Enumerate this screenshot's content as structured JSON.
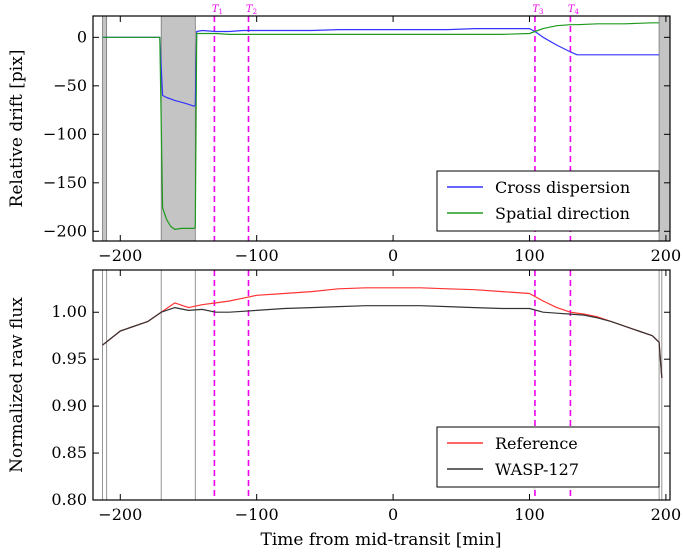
{
  "chart_data": [
    {
      "type": "line",
      "ylabel": "Relative drift [pix]",
      "xlim": [
        -220,
        203
      ],
      "ylim": [
        -210,
        22
      ],
      "xticks": [
        -200,
        -100,
        0,
        100,
        200
      ],
      "xtick_labels": [
        "−200",
        "−100",
        "0",
        "100",
        "200"
      ],
      "yticks": [
        0,
        -50,
        -100,
        -150,
        -200
      ],
      "ytick_labels": [
        "0",
        "−50",
        "−100",
        "−150",
        "−200"
      ],
      "shaded_regions": [
        [
          -213,
          -210
        ],
        [
          -170,
          -145
        ],
        [
          195,
          203
        ]
      ],
      "transit_markers": [
        {
          "label": "T1",
          "x": -131
        },
        {
          "label": "T2",
          "x": -106
        },
        {
          "label": "T3",
          "x": 104
        },
        {
          "label": "T4",
          "x": 130
        }
      ],
      "legend_position": "lower-right",
      "series": [
        {
          "name": "Cross dispersion",
          "color": "#3333ff",
          "x": [
            -213,
            -205,
            -195,
            -185,
            -175,
            -171,
            -169,
            -166,
            -160,
            -155,
            -150,
            -146,
            -145,
            -144,
            -140,
            -130,
            -120,
            -110,
            -100,
            -80,
            -60,
            -40,
            -20,
            0,
            20,
            40,
            60,
            80,
            100,
            104,
            110,
            120,
            130,
            135,
            150,
            170,
            190,
            195
          ],
          "y": [
            0,
            0,
            0,
            0,
            0,
            0,
            -60,
            -62,
            -65,
            -67,
            -69,
            -71,
            -70,
            6,
            7,
            6,
            6,
            7,
            7,
            7,
            7,
            8,
            8,
            8,
            8,
            8,
            9,
            9,
            9,
            6,
            0,
            -8,
            -15,
            -18,
            -18,
            -18,
            -18,
            -18
          ]
        },
        {
          "name": "Spatial direction",
          "color": "#1e9a1e",
          "x": [
            -213,
            -205,
            -195,
            -185,
            -175,
            -171,
            -169,
            -166,
            -163,
            -160,
            -155,
            -150,
            -146,
            -145,
            -144,
            -140,
            -130,
            -120,
            -110,
            -100,
            -80,
            -60,
            -40,
            -20,
            0,
            20,
            40,
            60,
            80,
            100,
            104,
            110,
            120,
            130,
            135,
            150,
            170,
            190,
            195
          ],
          "y": [
            0,
            0,
            0,
            0,
            0,
            0,
            -176,
            -188,
            -195,
            -198,
            -197,
            -197,
            -197,
            -196,
            4,
            4,
            4,
            3,
            3,
            3,
            3,
            3,
            3,
            3,
            3,
            3,
            3,
            3,
            3,
            4,
            6,
            9,
            12,
            13,
            13,
            14,
            14,
            15,
            15
          ]
        }
      ]
    },
    {
      "type": "line",
      "xlabel": "Time from mid-transit [min]",
      "ylabel": "Normalized raw flux",
      "xlim": [
        -220,
        203
      ],
      "ylim": [
        0.8,
        1.045
      ],
      "xticks": [
        -200,
        -100,
        0,
        100,
        200
      ],
      "xtick_labels": [
        "−200",
        "−100",
        "0",
        "100",
        "200"
      ],
      "yticks": [
        0.8,
        0.85,
        0.9,
        0.95,
        1.0
      ],
      "ytick_labels": [
        "0.80",
        "0.85",
        "0.90",
        "0.95",
        "1.00"
      ],
      "vertical_lines": [
        -213,
        -210,
        -170,
        -145,
        195,
        197
      ],
      "transit_markers": [
        {
          "label": "T1",
          "x": -131
        },
        {
          "label": "T2",
          "x": -106
        },
        {
          "label": "T3",
          "x": 104
        },
        {
          "label": "T4",
          "x": 130
        }
      ],
      "legend_position": "lower-right",
      "series": [
        {
          "name": "Reference",
          "color": "#ff3333",
          "x": [
            -213,
            -200,
            -180,
            -170,
            -160,
            -150,
            -140,
            -130,
            -120,
            -110,
            -100,
            -80,
            -60,
            -40,
            -20,
            0,
            20,
            40,
            60,
            80,
            100,
            110,
            120,
            130,
            140,
            150,
            160,
            170,
            180,
            190,
            195,
            197
          ],
          "y": [
            0.965,
            0.98,
            0.99,
            1.0,
            1.01,
            1.005,
            1.008,
            1.01,
            1.012,
            1.015,
            1.018,
            1.02,
            1.022,
            1.025,
            1.026,
            1.026,
            1.026,
            1.025,
            1.024,
            1.022,
            1.02,
            1.012,
            1.005,
            1.0,
            0.998,
            0.995,
            0.99,
            0.985,
            0.98,
            0.975,
            0.968,
            0.93
          ]
        },
        {
          "name": "WASP-127",
          "color": "#333333",
          "x": [
            -213,
            -200,
            -180,
            -170,
            -160,
            -150,
            -140,
            -130,
            -120,
            -110,
            -100,
            -80,
            -60,
            -40,
            -20,
            0,
            20,
            40,
            60,
            80,
            100,
            110,
            120,
            130,
            140,
            150,
            160,
            170,
            180,
            190,
            195,
            197
          ],
          "y": [
            0.965,
            0.98,
            0.99,
            1.0,
            1.005,
            1.002,
            1.003,
            1.0,
            1.0,
            1.001,
            1.002,
            1.004,
            1.005,
            1.006,
            1.007,
            1.007,
            1.007,
            1.006,
            1.005,
            1.004,
            1.004,
            1.0,
            0.999,
            0.998,
            0.997,
            0.994,
            0.99,
            0.985,
            0.98,
            0.975,
            0.968,
            0.93
          ]
        }
      ]
    }
  ]
}
